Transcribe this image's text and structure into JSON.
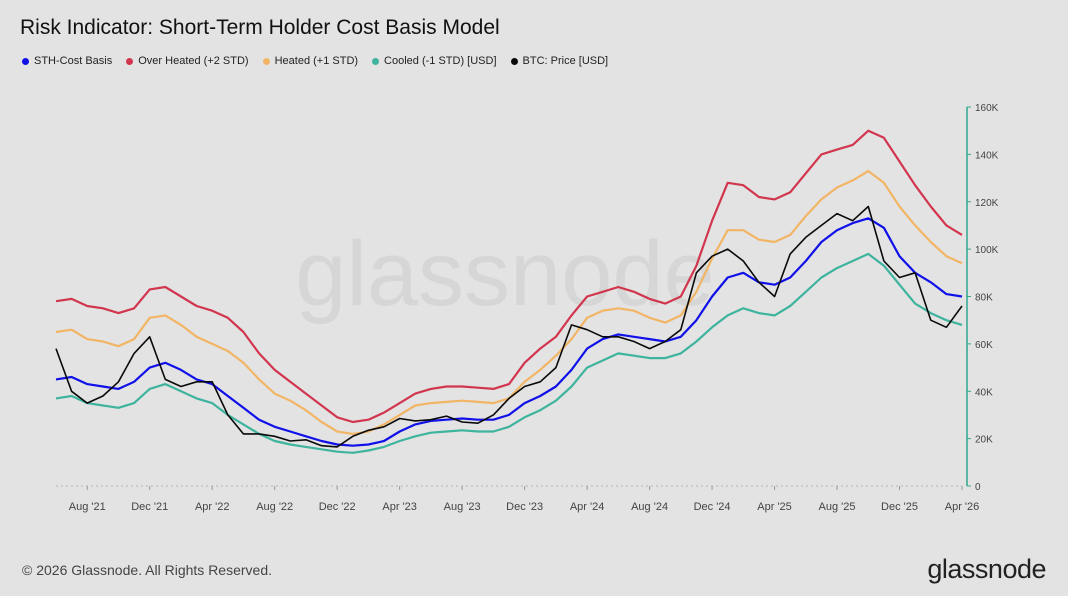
{
  "header": {
    "title": "Risk Indicator: Short-Term Holder Cost Basis Model"
  },
  "watermark": "glassnode",
  "footer": {
    "copyright": "© 2026 Glassnode. All Rights Reserved.",
    "logo": "glassnode"
  },
  "chart_data": {
    "type": "line",
    "title": "Risk Indicator: Short-Term Holder Cost Basis Model",
    "x_tick_labels": [
      "Aug '21",
      "Dec '21",
      "Apr '22",
      "Aug '22",
      "Dec '22",
      "Apr '23",
      "Aug '23",
      "Dec '23",
      "Apr '24",
      "Aug '24",
      "Dec '24",
      "Apr '25",
      "Aug '25",
      "Dec '25",
      "Apr '26"
    ],
    "x_ticks": [
      "2021-08",
      "2021-12",
      "2022-04",
      "2022-08",
      "2022-12",
      "2023-04",
      "2023-08",
      "2023-12",
      "2024-04",
      "2024-08",
      "2024-12",
      "2025-04",
      "2025-08",
      "2025-12",
      "2026-04"
    ],
    "y_tick_labels": [
      "0",
      "20K",
      "40K",
      "60K",
      "80K",
      "100K",
      "120K",
      "140K",
      "160K"
    ],
    "ylim": [
      0,
      160000
    ],
    "y_axis_position": "right",
    "legend_position": "top-left",
    "grid": false,
    "x": [
      "2021-06",
      "2021-07",
      "2021-08",
      "2021-09",
      "2021-10",
      "2021-11",
      "2021-12",
      "2022-01",
      "2022-02",
      "2022-03",
      "2022-04",
      "2022-05",
      "2022-06",
      "2022-07",
      "2022-08",
      "2022-09",
      "2022-10",
      "2022-11",
      "2022-12",
      "2023-01",
      "2023-02",
      "2023-03",
      "2023-04",
      "2023-05",
      "2023-06",
      "2023-07",
      "2023-08",
      "2023-09",
      "2023-10",
      "2023-11",
      "2023-12",
      "2024-01",
      "2024-02",
      "2024-03",
      "2024-04",
      "2024-05",
      "2024-06",
      "2024-07",
      "2024-08",
      "2024-09",
      "2024-10",
      "2024-11",
      "2024-12",
      "2025-01",
      "2025-02",
      "2025-03",
      "2025-04",
      "2025-05",
      "2025-06",
      "2025-07",
      "2025-08",
      "2025-09",
      "2025-10",
      "2025-11",
      "2025-12",
      "2026-01",
      "2026-02",
      "2026-03",
      "2026-04"
    ],
    "series": [
      {
        "name": "STH-Cost Basis",
        "color": "#1010e8",
        "values": [
          45000,
          46000,
          43000,
          42000,
          41000,
          44000,
          50000,
          52000,
          49000,
          45000,
          43000,
          38000,
          33000,
          28000,
          25000,
          23000,
          21000,
          19000,
          17500,
          17000,
          17500,
          19000,
          23000,
          26000,
          27500,
          28000,
          28500,
          28000,
          28000,
          30000,
          35000,
          38000,
          42000,
          49000,
          58000,
          62000,
          64000,
          63000,
          62000,
          61000,
          63000,
          70000,
          80000,
          88000,
          90000,
          86000,
          85000,
          88000,
          95000,
          103000,
          108000,
          111000,
          113000,
          109000,
          97000,
          90000,
          86000,
          81000,
          80000
        ]
      },
      {
        "name": "Over Heated (+2 STD)",
        "color": "#d1364e",
        "values": [
          78000,
          79000,
          76000,
          75000,
          73000,
          75000,
          83000,
          84000,
          80000,
          76000,
          74000,
          71000,
          65000,
          56000,
          49000,
          44000,
          39000,
          34000,
          29000,
          27000,
          28000,
          31000,
          35000,
          39000,
          41000,
          42000,
          42000,
          41500,
          41000,
          43000,
          52000,
          58000,
          63000,
          72000,
          80000,
          82000,
          84000,
          82000,
          79000,
          77000,
          80000,
          93000,
          112000,
          128000,
          127000,
          122000,
          121000,
          124000,
          132000,
          140000,
          142000,
          144000,
          150000,
          147000,
          137000,
          127000,
          118000,
          110000,
          106000
        ]
      },
      {
        "name": "Heated (+1 STD)",
        "color": "#f2b565",
        "values": [
          65000,
          66000,
          62000,
          61000,
          59000,
          62000,
          71000,
          72000,
          68000,
          63000,
          60000,
          57000,
          52000,
          45000,
          39000,
          36000,
          32000,
          27000,
          23000,
          22000,
          23000,
          26000,
          30000,
          34000,
          35000,
          35500,
          36000,
          35500,
          35000,
          37000,
          44000,
          49000,
          55000,
          62000,
          71000,
          74000,
          75000,
          74000,
          71000,
          69000,
          72000,
          82000,
          96000,
          108000,
          108000,
          104000,
          103000,
          106000,
          114000,
          121000,
          126000,
          129000,
          133000,
          128000,
          118000,
          110000,
          103000,
          97000,
          94000
        ]
      },
      {
        "name": "Cooled (-1 STD) [USD]",
        "color": "#3eb49e",
        "values": [
          37000,
          38000,
          35000,
          34000,
          33000,
          35000,
          41000,
          43000,
          40000,
          37000,
          35000,
          30000,
          26000,
          22000,
          19000,
          17500,
          16500,
          15500,
          14500,
          14000,
          15000,
          16500,
          19000,
          21000,
          22500,
          23000,
          23500,
          23000,
          23000,
          25000,
          29000,
          32000,
          36000,
          42000,
          50000,
          53000,
          56000,
          55000,
          54000,
          54000,
          56000,
          61000,
          67000,
          72000,
          75000,
          73000,
          72000,
          76000,
          82000,
          88000,
          92000,
          95000,
          98000,
          93000,
          85000,
          77000,
          73000,
          70000,
          68000
        ]
      },
      {
        "name": "BTC: Price [USD]",
        "color": "#0a0a0a",
        "values": [
          58000,
          40000,
          35000,
          38000,
          44000,
          56000,
          63000,
          45000,
          42000,
          44000,
          44000,
          30000,
          22000,
          22000,
          21000,
          19000,
          19500,
          17000,
          16500,
          21000,
          23500,
          25000,
          28500,
          27500,
          28000,
          29500,
          27000,
          26500,
          30000,
          37000,
          42000,
          44000,
          50000,
          68000,
          66000,
          63000,
          63000,
          61000,
          58000,
          61000,
          66000,
          90000,
          97000,
          100000,
          95000,
          86000,
          80000,
          98000,
          105000,
          110000,
          115000,
          112000,
          118000,
          95000,
          88000,
          90000,
          70000,
          67000,
          76000
        ]
      }
    ]
  }
}
